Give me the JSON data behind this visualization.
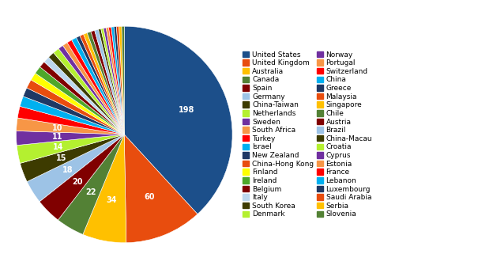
{
  "countries": [
    "United States",
    "United Kingdom",
    "Australia",
    "Canada",
    "Spain",
    "Germany",
    "China-Taiwan",
    "Netherlands",
    "Sweden",
    "South Africa",
    "Turkey",
    "Israel",
    "New Zealand",
    "China-Hong Kong",
    "Finland",
    "Ireland",
    "Belgium",
    "Italy",
    "South Korea",
    "Denmark",
    "Norway",
    "Portugal",
    "Switzerland",
    "China",
    "Greece",
    "Malaysia",
    "Singapore",
    "Chile",
    "Austria",
    "Brazil",
    "China-Macau",
    "Croatia",
    "Cyprus",
    "Estonia",
    "France",
    "Lebanon",
    "Luxembourg",
    "Saudi Arabia",
    "Serbia",
    "Slovenia"
  ],
  "values": [
    198,
    60,
    34,
    22,
    20,
    18,
    15,
    14,
    11,
    10,
    9,
    8,
    7,
    7,
    6,
    6,
    5,
    5,
    5,
    5,
    4,
    4,
    4,
    4,
    3,
    3,
    3,
    3,
    3,
    3,
    2,
    2,
    2,
    2,
    2,
    2,
    2,
    2,
    2,
    2
  ],
  "colors_map": {
    "United States": "#1c4f8a",
    "United Kingdom": "#e84d0e",
    "Australia": "#ffc000",
    "Canada": "#538135",
    "Spain": "#800000",
    "Germany": "#9dc3e6",
    "China-Taiwan": "#3d3b00",
    "Netherlands": "#b4f030",
    "Sweden": "#7030a0",
    "South Africa": "#f79646",
    "Turkey": "#ff0000",
    "Israel": "#00b0f0",
    "New Zealand": "#1f3864",
    "China-Hong Kong": "#e84d0e",
    "Finland": "#ffff00",
    "Ireland": "#4ea72a",
    "Belgium": "#800000",
    "Italy": "#bdd7ee",
    "South Korea": "#3d3b00",
    "Denmark": "#b4f030",
    "Norway": "#7030a0",
    "Portugal": "#f79646",
    "Switzerland": "#ff0000",
    "China": "#00b0f0",
    "Greece": "#1f3864",
    "Malaysia": "#e84d0e",
    "Singapore": "#ffc000",
    "Chile": "#538135",
    "Austria": "#800000",
    "Brazil": "#9dc3e6",
    "China-Macau": "#3d3b00",
    "Croatia": "#b4f030",
    "Cyprus": "#7030a0",
    "Estonia": "#f79646",
    "France": "#ff0000",
    "Lebanon": "#00b0f0",
    "Luxembourg": "#1f3864",
    "Saudi Arabia": "#e84d0e",
    "Serbia": "#ffc000",
    "Slovenia": "#538135"
  },
  "background_color": "#ffffff",
  "label_min": 10,
  "label_fontsize": 7,
  "legend_fontsize": 6.5
}
